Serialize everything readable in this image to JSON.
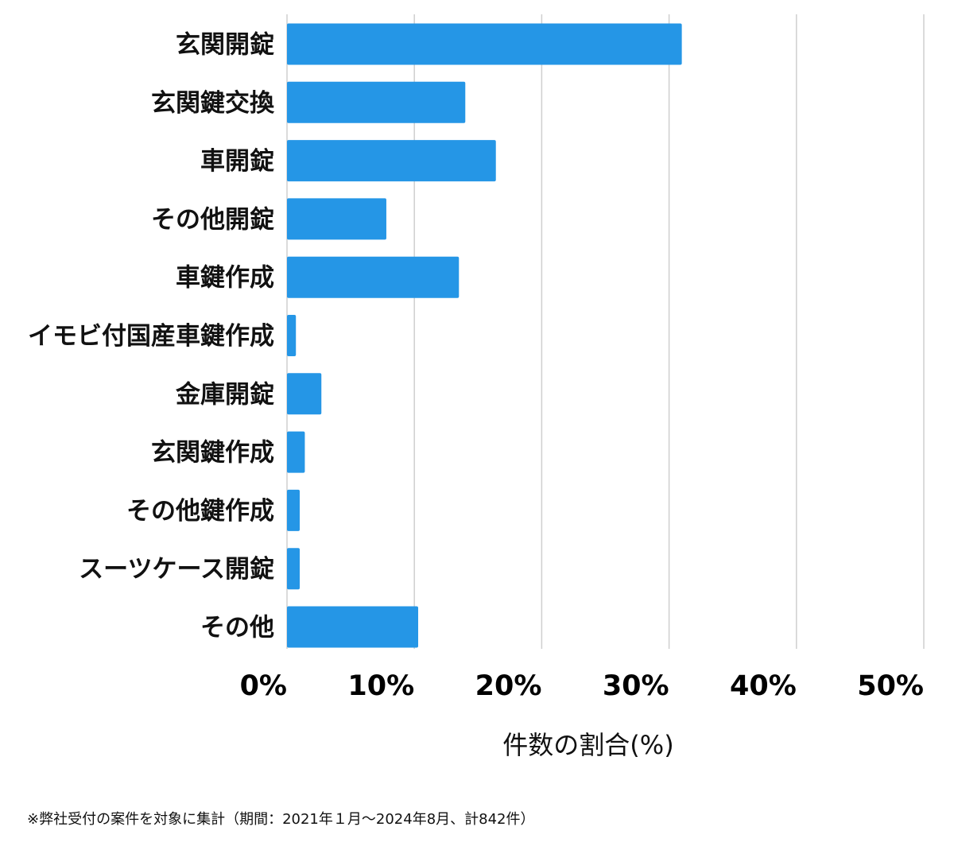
{
  "chart_data": {
    "type": "bar",
    "orientation": "horizontal",
    "categories": [
      "玄関開錠",
      "玄関鍵交換",
      "車開錠",
      "その他開錠",
      "車鍵作成",
      "イモビ付国産車鍵作成",
      "金庫開錠",
      "玄関鍵作成",
      "その他鍵作成",
      "スーツケース開錠",
      "その他"
    ],
    "values": [
      31,
      14,
      16.4,
      7.8,
      13.5,
      0.7,
      2.7,
      1.4,
      1.0,
      1.0,
      10.3
    ],
    "xlim": [
      0,
      50
    ],
    "ticks": [
      "0%",
      "10%",
      "20%",
      "30%",
      "40%",
      "50%"
    ],
    "tick_values": [
      0,
      10,
      20,
      30,
      40,
      50
    ],
    "xlabel": "件数の割合(%)",
    "ylabel": "",
    "title": "",
    "grid": true,
    "bar_color": "#2596e6"
  },
  "footnote": "※弊社受付の案件を対象に集計（期間：2021年１月〜2024年8月、計842件）"
}
